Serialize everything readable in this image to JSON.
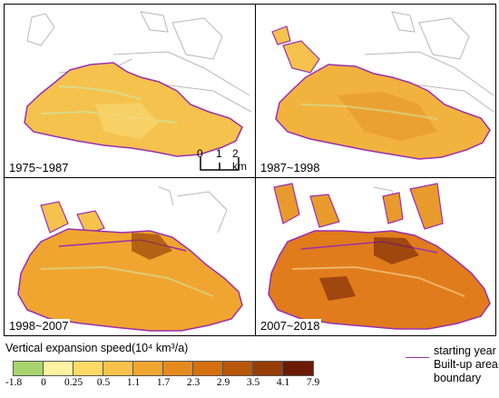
{
  "panels": [
    {
      "label": "1975~1987"
    },
    {
      "label": "1987~1998"
    },
    {
      "label": "1998~2007"
    },
    {
      "label": "2007~2018"
    }
  ],
  "scale_bar": {
    "labels": [
      "0",
      "1",
      "2 km"
    ]
  },
  "legend": {
    "title": "Vertical expansion speed(10⁴ km³/a)",
    "ticks": [
      "-1.8",
      "0",
      "0.25",
      "0.5",
      "1.1",
      "1.7",
      "2.3",
      "2.9",
      "3.5",
      "4.1",
      "7.9"
    ],
    "colors": [
      "#a8d46f",
      "#fff2a0",
      "#ffd966",
      "#f8c24a",
      "#f0a530",
      "#e68a1f",
      "#d4700f",
      "#b8560a",
      "#963d08",
      "#6b1a05"
    ]
  },
  "boundary_legend": {
    "lines": [
      "starting year",
      "Built-up area",
      "boundary"
    ],
    "color": "#9b2fae"
  }
}
